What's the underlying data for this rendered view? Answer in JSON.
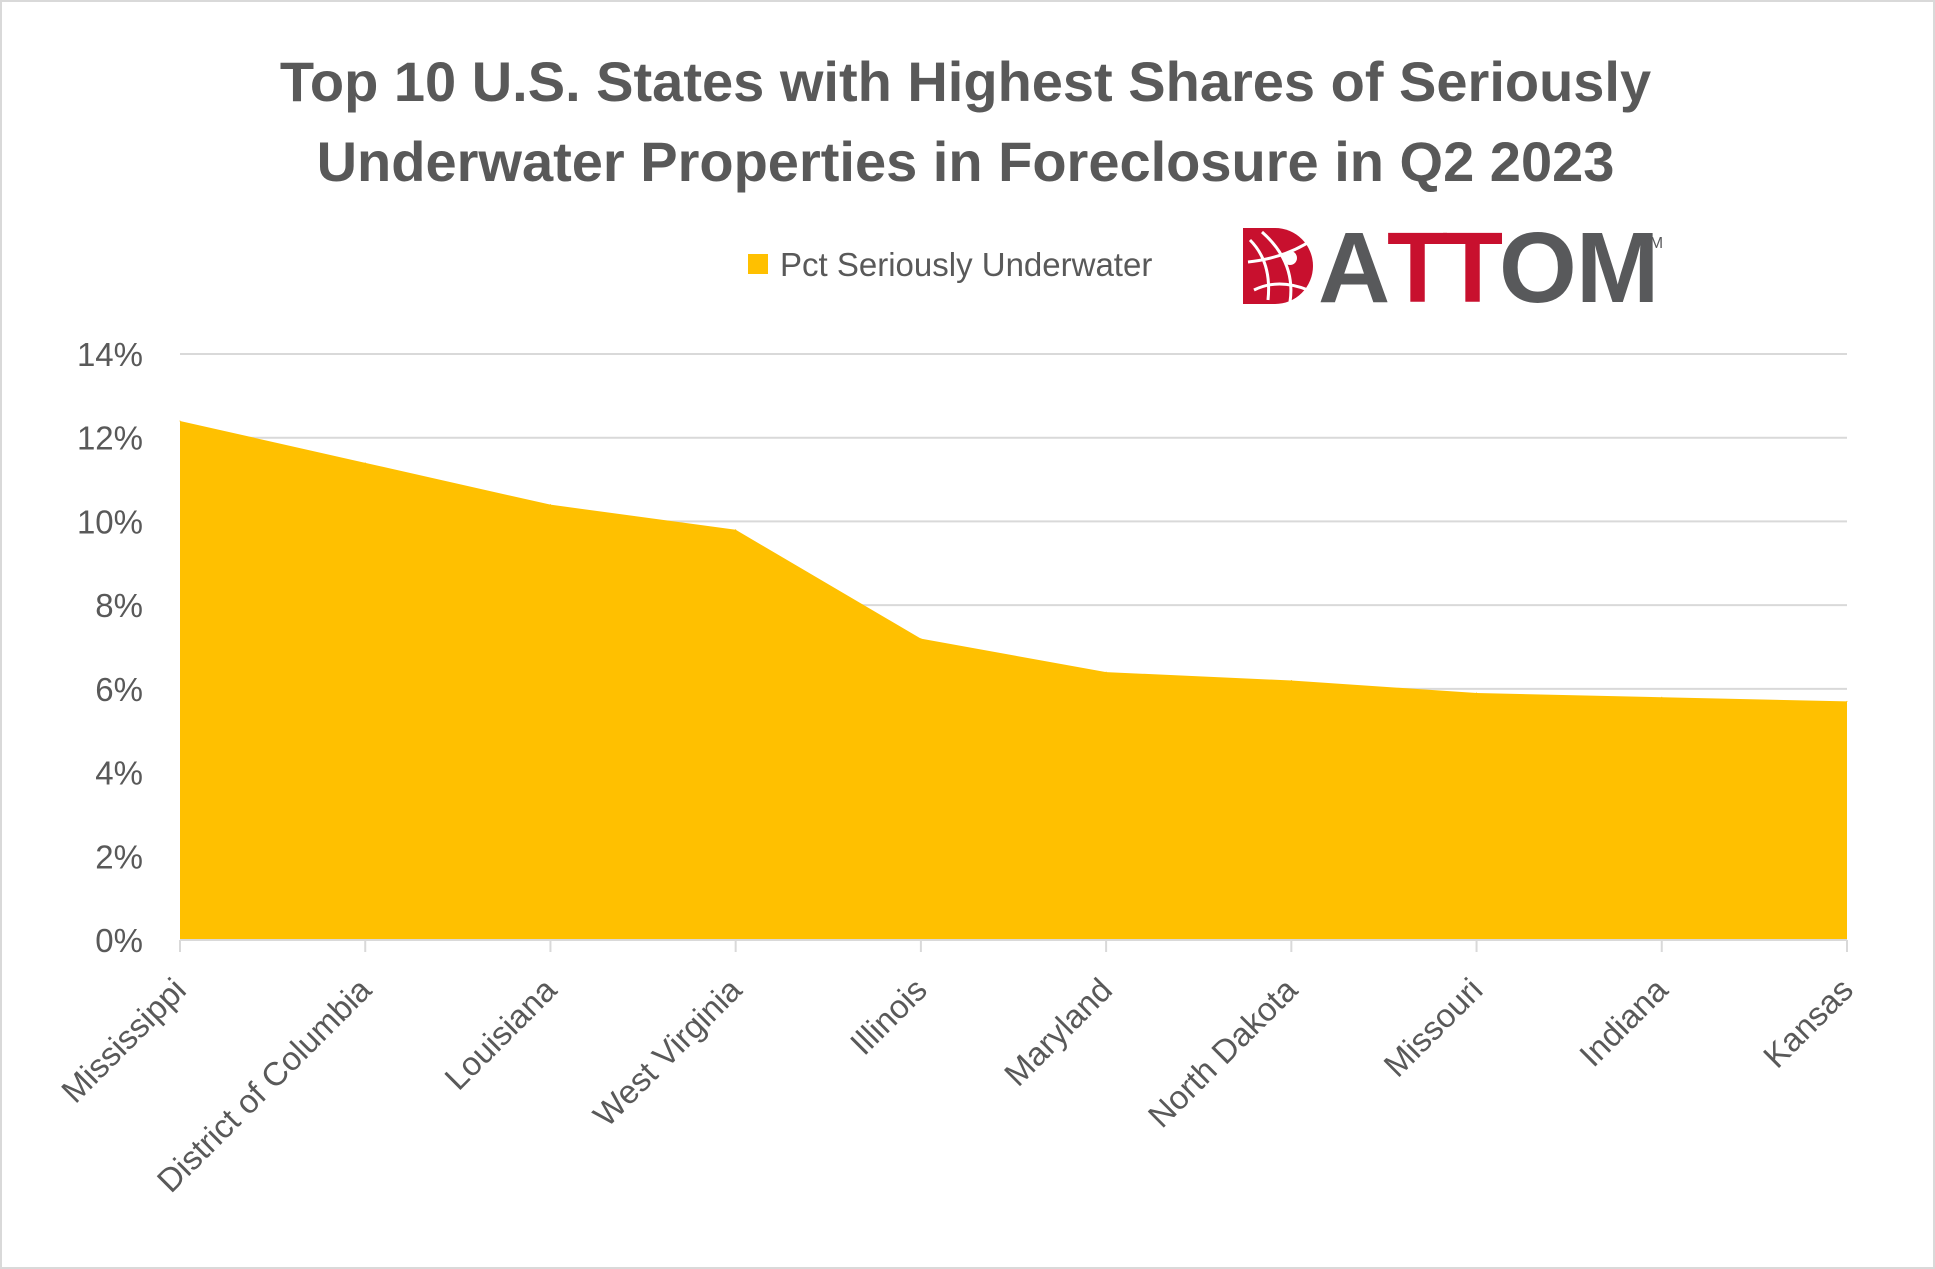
{
  "chart_data": {
    "type": "area",
    "title_lines": [
      "Top 10 U.S. States with Highest Shares of Seriously",
      "Underwater Properties in Foreclosure in Q2 2023"
    ],
    "categories": [
      "Mississippi",
      "District of Columbia",
      "Louisiana",
      "West Virginia",
      "Illinois",
      "Maryland",
      "North Dakota",
      "Missouri",
      "Indiana",
      "Kansas"
    ],
    "series": [
      {
        "name": "Pct Seriously Underwater",
        "values": [
          12.4,
          11.4,
          10.4,
          9.8,
          7.2,
          6.4,
          6.2,
          5.9,
          5.8,
          5.7
        ],
        "color": "#ffc000"
      }
    ],
    "ylim": [
      0,
      14
    ],
    "yticks": [
      0,
      2,
      4,
      6,
      8,
      10,
      12,
      14
    ],
    "ytick_labels": [
      "0%",
      "2%",
      "4%",
      "6%",
      "8%",
      "10%",
      "12%",
      "14%"
    ],
    "grid": true,
    "legend_position": "top-center",
    "gridline_color": "#d9d9d9",
    "text_color": "#595959"
  },
  "logo": {
    "letters": [
      "A",
      "T",
      "T",
      "O",
      "M"
    ],
    "trademark": "TM",
    "colors": {
      "primary": "#c8102e",
      "gray": "#58595b"
    }
  }
}
